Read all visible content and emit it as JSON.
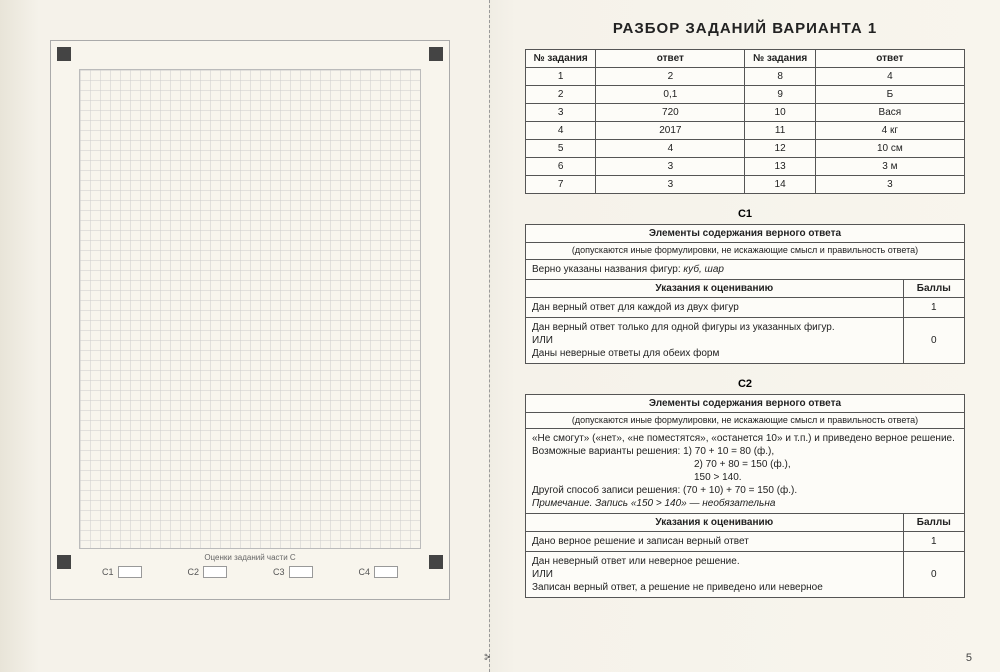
{
  "left": {
    "grid_caption": "Оценки заданий части С",
    "c_labels": [
      "С1",
      "С2",
      "С3",
      "С4"
    ]
  },
  "right": {
    "title": "РАЗБОР ЗАДАНИЙ ВАРИАНТА 1",
    "answers": {
      "headers": [
        "№ задания",
        "ответ",
        "№ задания",
        "ответ"
      ],
      "rows": [
        [
          "1",
          "2",
          "8",
          "4"
        ],
        [
          "2",
          "0,1",
          "9",
          "Б"
        ],
        [
          "3",
          "720",
          "10",
          "Вася"
        ],
        [
          "4",
          "2017",
          "11",
          "4 кг"
        ],
        [
          "5",
          "4",
          "12",
          "10 см"
        ],
        [
          "6",
          "3",
          "13",
          "3 м"
        ],
        [
          "7",
          "3",
          "14",
          "3"
        ]
      ]
    },
    "c1": {
      "label": "С1",
      "elem_hdr": "Элементы содержания верного ответа",
      "elem_note": "(допускаются иные формулировки, не искажающие смысл и правильность ответа)",
      "elem_body": "Верно указаны названия фигур: куб, шар",
      "grade_hdr": "Указания к оцениванию",
      "pts_hdr": "Баллы",
      "rows": [
        {
          "text": "Дан верный ответ для каждой из двух фигур",
          "pts": "1"
        },
        {
          "text": "Дан верный ответ только для одной фигуры из указанных фигур. ИЛИ Даны неверные ответы для обеих форм",
          "pts": "0"
        }
      ]
    },
    "c2": {
      "label": "С2",
      "elem_hdr": "Элементы содержания верного ответа",
      "elem_note": "(допускаются иные формулировки, не искажающие смысл и правильность ответа)",
      "elem_body_l1": "«Не смогут» («нет», «не поместятся», «останется 10» и т.п.) и приведено верное решение.",
      "elem_body_l2": "Возможные варианты решения:  1) 70 + 10 = 80 (ф.),",
      "elem_body_l3": "2) 70 + 80 = 150 (ф.),",
      "elem_body_l4": "150 > 140.",
      "elem_body_l5": "Другой способ записи решения: (70 + 10) + 70 = 150 (ф.).",
      "elem_body_l6": "Примечание. Запись «150 > 140» — необязательна",
      "grade_hdr": "Указания к оцениванию",
      "pts_hdr": "Баллы",
      "rows": [
        {
          "text": "Дано верное решение и записан верный ответ",
          "pts": "1"
        },
        {
          "text": "Дан неверный ответ или неверное решение. ИЛИ Записан верный ответ, а решение не приведено или неверное",
          "pts": "0"
        }
      ]
    },
    "page_num": "5"
  }
}
